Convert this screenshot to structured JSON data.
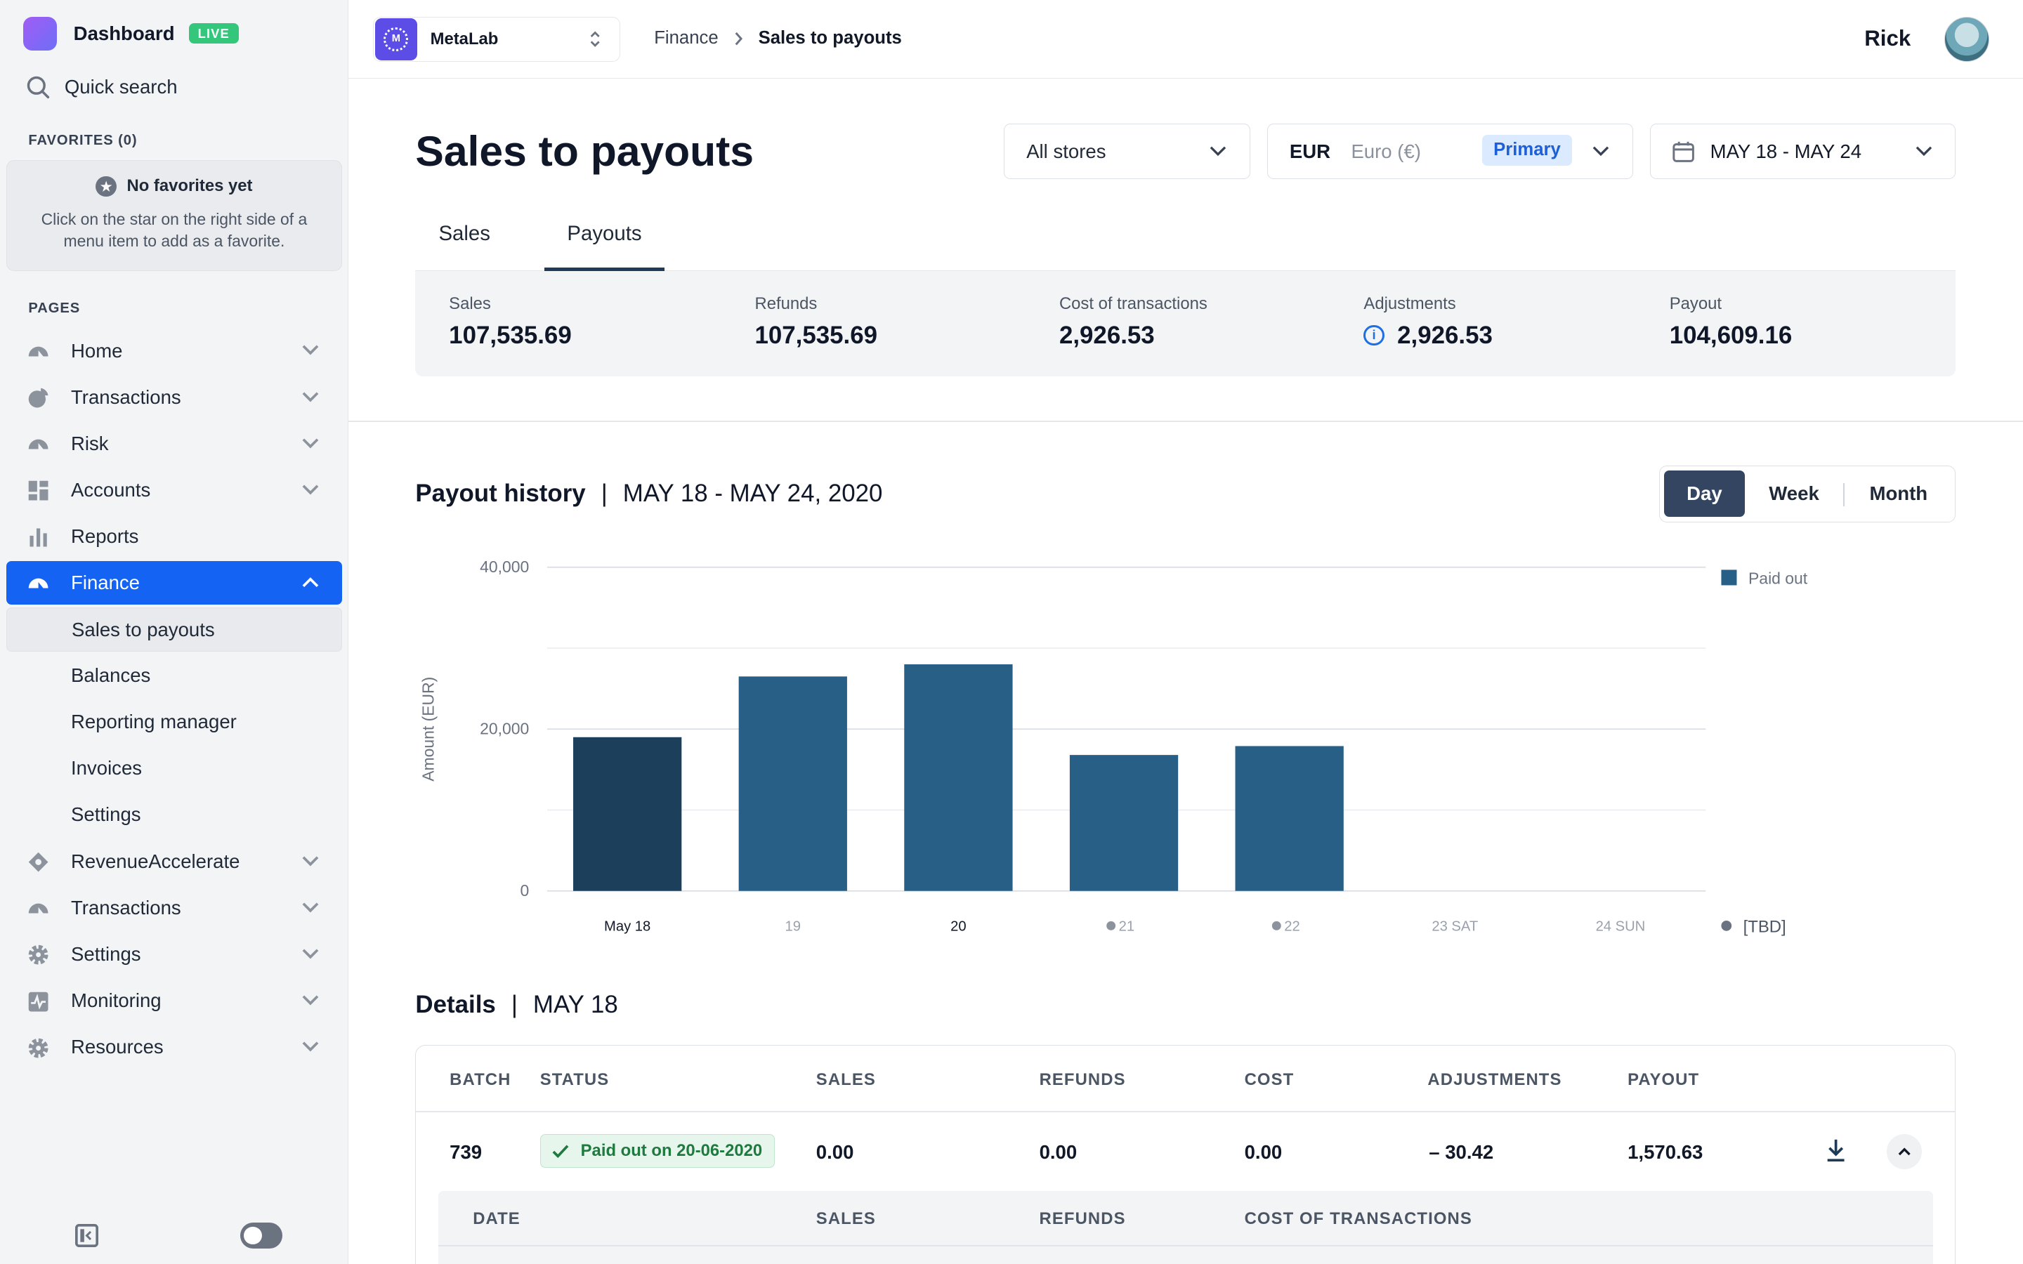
{
  "sidebar": {
    "brand": "Dashboard",
    "env_badge": "LIVE",
    "quick_search": "Quick search",
    "favorites_label": "FAVORITES (0)",
    "favorites_empty_title": "No favorites yet",
    "favorites_empty_desc": "Click on the star on the right side of a menu item to add as a favorite.",
    "pages_label": "PAGES",
    "items": [
      {
        "label": "Home",
        "icon": "gauge-icon"
      },
      {
        "label": "Transactions",
        "icon": "pie-icon"
      },
      {
        "label": "Risk",
        "icon": "gauge-icon"
      },
      {
        "label": "Accounts",
        "icon": "grid-icon"
      },
      {
        "label": "Reports",
        "icon": "bar-chart-icon"
      },
      {
        "label": "Finance",
        "icon": "gauge-icon",
        "active": true
      },
      {
        "label": "RevenueAccelerate",
        "icon": "diamond-icon"
      },
      {
        "label": "Transactions",
        "icon": "gauge-icon"
      },
      {
        "label": "Settings",
        "icon": "gear-icon"
      },
      {
        "label": "Monitoring",
        "icon": "pulse-icon"
      },
      {
        "label": "Resources",
        "icon": "gear-icon"
      }
    ],
    "finance_sub": [
      "Sales to payouts",
      "Balances",
      "Reporting manager",
      "Invoices",
      "Settings"
    ]
  },
  "topbar": {
    "org_name": "MetaLab",
    "org_logo_letter": "M",
    "breadcrumb_parent": "Finance",
    "breadcrumb_current": "Sales to payouts",
    "user_name": "Rick"
  },
  "page": {
    "title": "Sales to payouts",
    "store_filter": "All stores",
    "currency_code": "EUR",
    "currency_name": "Euro (€)",
    "currency_badge": "Primary",
    "date_range": "MAY 18 - MAY 24",
    "tabs": [
      "Sales",
      "Payouts"
    ],
    "active_tab": "Payouts"
  },
  "summary": [
    {
      "label": "Sales",
      "value": "107,535.69"
    },
    {
      "label": "Refunds",
      "value": "107,535.69"
    },
    {
      "label": "Cost of transactions",
      "value": "2,926.53"
    },
    {
      "label": "Adjustments",
      "value": "2,926.53",
      "info": "i"
    },
    {
      "label": "Payout",
      "value": "104,609.16"
    }
  ],
  "payout_history": {
    "title": "Payout history",
    "range": "MAY 18 - MAY 24, 2020",
    "granularity": [
      "Day",
      "Week",
      "Month"
    ],
    "selected": "Day"
  },
  "chart_data": {
    "type": "bar",
    "categories": [
      "May 18",
      "19",
      "20",
      "21",
      "22",
      "23",
      "24"
    ],
    "category_suffix": [
      "",
      "",
      "",
      "",
      "",
      "SAT",
      "SUN"
    ],
    "series": [
      {
        "name": "Paid out",
        "values": [
          19000,
          26500,
          28000,
          16800,
          17900,
          null,
          null
        ]
      }
    ],
    "ylabel": "Amount (EUR)",
    "yticks": [
      "40,000",
      "20,000",
      "0"
    ],
    "ylim": [
      0,
      40000
    ],
    "legend": [
      "Paid out",
      "[TBD]"
    ],
    "legend_position": "right",
    "colors": {
      "selected": "#1c3f5c",
      "bar": "#285f87",
      "tbd_dot": "#6b7280"
    },
    "grid": true
  },
  "details": {
    "title": "Details",
    "date": "MAY 18",
    "columns": [
      "BATCH",
      "STATUS",
      "SALES",
      "REFUNDS",
      "COST",
      "ADJUSTMENTS",
      "PAYOUT"
    ],
    "row": {
      "batch": "739",
      "status": "Paid out on 20-06-2020",
      "sales": "0.00",
      "refunds": "0.00",
      "cost": "0.00",
      "adjustments": "– 30.42",
      "payout": "1,570.63"
    },
    "sub_columns": [
      "DATE",
      "SALES",
      "REFUNDS",
      "COST OF TRANSACTIONS"
    ]
  }
}
